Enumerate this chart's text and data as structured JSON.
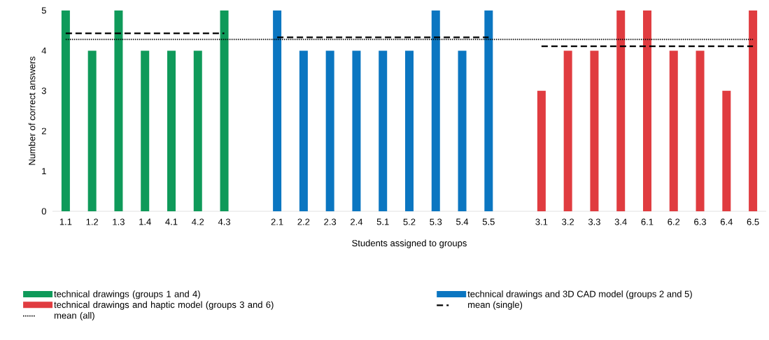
{
  "chart_data": {
    "type": "bar",
    "xlabel": "Students assigned to groups",
    "ylabel": "Number of correct answers",
    "categories": [
      "1.1",
      "1.2",
      "1.3",
      "1.4",
      "4.1",
      "4.2",
      "4.3",
      null,
      "2.1",
      "2.2",
      "2.3",
      "2.4",
      "5.1",
      "5.2",
      "5.3",
      "5.4",
      "5.5",
      null,
      "3.1",
      "3.2",
      "3.3",
      "3.4",
      "6.1",
      "6.2",
      "6.3",
      "6.4",
      "6.5"
    ],
    "ylim": [
      0,
      5
    ],
    "yticks": [
      0,
      1,
      2,
      3,
      4,
      5
    ],
    "grid": false,
    "legend": "bottom",
    "series": [
      {
        "name": "technical drawings (groups 1 and 4)",
        "color": "#0f9a5a",
        "values": [
          5,
          4,
          5,
          4,
          4,
          4,
          5,
          null,
          null,
          null,
          null,
          null,
          null,
          null,
          null,
          null,
          null,
          null,
          null,
          null,
          null,
          null,
          null,
          null,
          null,
          null,
          null
        ]
      },
      {
        "name": "technical drawings and 3D CAD model (groups 2 and 5)",
        "color": "#0b76c1",
        "values": [
          null,
          null,
          null,
          null,
          null,
          null,
          null,
          null,
          5,
          4,
          4,
          4,
          4,
          4,
          5,
          4,
          5,
          null,
          null,
          null,
          null,
          null,
          null,
          null,
          null,
          null,
          null
        ]
      },
      {
        "name": "technical drawings and haptic model (groups 3 and 6)",
        "color": "#e03c40",
        "values": [
          null,
          null,
          null,
          null,
          null,
          null,
          null,
          null,
          null,
          null,
          null,
          null,
          null,
          null,
          null,
          null,
          null,
          null,
          3,
          4,
          4,
          5,
          5,
          4,
          4,
          3,
          5
        ]
      },
      {
        "name": "mean (single)",
        "type": "line",
        "line_style": "dashed",
        "marker": "none",
        "color": "#000000",
        "values": [
          4.43,
          4.43,
          4.43,
          4.43,
          4.43,
          4.43,
          4.43,
          null,
          4.33,
          4.33,
          4.33,
          4.33,
          4.33,
          4.33,
          4.33,
          4.33,
          4.33,
          null,
          4.11,
          4.11,
          4.11,
          4.11,
          4.11,
          4.11,
          4.11,
          4.11,
          4.11
        ]
      },
      {
        "name": "mean (all)",
        "type": "line",
        "line_style": "dotted",
        "marker": "none",
        "color": "#000000",
        "values": [
          4.28,
          4.28,
          4.28,
          4.28,
          4.28,
          4.28,
          4.28,
          4.28,
          4.28,
          4.28,
          4.28,
          4.28,
          4.28,
          4.28,
          4.28,
          4.28,
          4.28,
          4.28,
          4.28,
          4.28,
          4.28,
          4.28,
          4.28,
          4.28,
          4.28,
          4.28,
          4.28
        ]
      }
    ]
  }
}
